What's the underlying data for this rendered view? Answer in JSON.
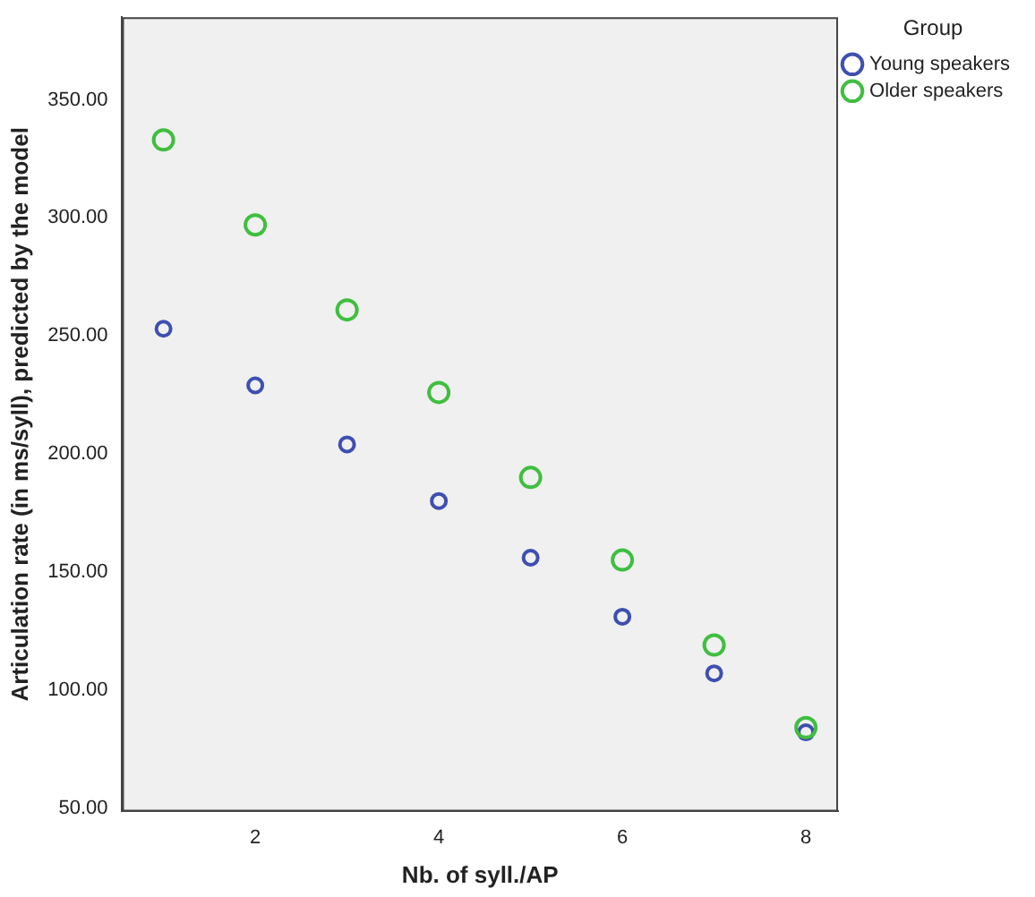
{
  "chart_data": {
    "type": "scatter",
    "xlabel": "Nb. of syll./AP",
    "ylabel": "Articulation rate (in ms/syll), predicted by the model",
    "legend_title": "Group",
    "legend": "top right",
    "marker": "circle",
    "grid": false,
    "x": [
      1,
      2,
      3,
      4,
      5,
      6,
      7,
      8
    ],
    "series": [
      {
        "name": "Young speakers",
        "color": "#3f4fb0",
        "values": [
          253,
          229,
          204,
          180,
          156,
          131,
          107,
          82
        ]
      },
      {
        "name": "Older speakers",
        "color": "#3fbf3f",
        "values": [
          333,
          297,
          261,
          226,
          190,
          155,
          119,
          84
        ]
      }
    ],
    "xlim": [
      0.55,
      8.35
    ],
    "xticks": [
      2,
      4,
      6,
      8
    ],
    "ylim": [
      48.5,
      385
    ],
    "yticks": [
      {
        "value": 50,
        "label": "50.00"
      },
      {
        "value": 100,
        "label": "100.00"
      },
      {
        "value": 150,
        "label": "150.00"
      },
      {
        "value": 200,
        "label": "200.00"
      },
      {
        "value": 250,
        "label": "250.00"
      },
      {
        "value": 300,
        "label": "300.00"
      },
      {
        "value": 350,
        "label": "350.00"
      }
    ]
  }
}
